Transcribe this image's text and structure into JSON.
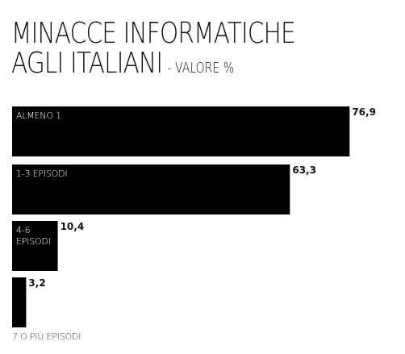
{
  "chart_data": {
    "type": "bar",
    "orientation": "horizontal",
    "title": "MINACCE INFORMATICHE AGLI ITALIANI",
    "title_lines": [
      "MINACCE INFORMATICHE",
      "AGLI ITALIANI"
    ],
    "subtitle": "- VALORE %",
    "categories": [
      "ALMENO 1",
      "1-3 EPISODI",
      "4-6 EPISODI",
      "7 O PIÙ EPISODI"
    ],
    "values": [
      76.9,
      63.3,
      10.4,
      3.2
    ],
    "value_labels": [
      "76,9",
      "63,3",
      "10,4",
      "3,2"
    ],
    "xlim": [
      0,
      100
    ],
    "grid": false,
    "legend": "none",
    "colors": {
      "bar": "#000000",
      "text": "#111111",
      "inside_label": "#ffffff"
    }
  }
}
